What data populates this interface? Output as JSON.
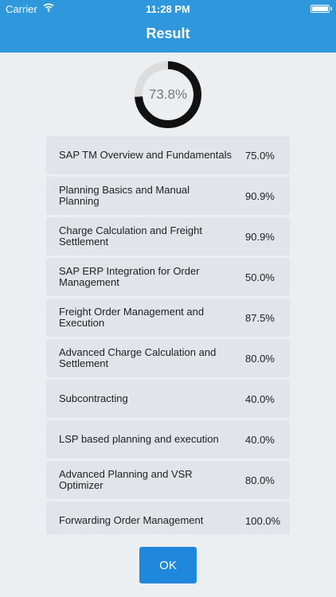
{
  "status_bar": {
    "carrier": "Carrier",
    "time": "11:28 PM",
    "icons": [
      "wifi-icon",
      "battery-icon"
    ]
  },
  "header": {
    "title": "Result"
  },
  "score": {
    "label": "73.8%",
    "value": 0.738
  },
  "results": [
    {
      "name": "SAP TM Overview and Fundamentals",
      "percent": "75.0%"
    },
    {
      "name": "Planning Basics and Manual Planning",
      "percent": "90.9%"
    },
    {
      "name": "Charge Calculation and Freight Settlement",
      "percent": "90.9%"
    },
    {
      "name": "SAP ERP Integration for Order Management",
      "percent": "50.0%"
    },
    {
      "name": "Freight Order Management and Execution",
      "percent": "87.5%"
    },
    {
      "name": "Advanced Charge Calculation and Settlement",
      "percent": "80.0%"
    },
    {
      "name": "Subcontracting",
      "percent": "40.0%"
    },
    {
      "name": "LSP based planning and execution",
      "percent": "40.0%"
    },
    {
      "name": "Advanced Planning and VSR Optimizer",
      "percent": "80.0%"
    },
    {
      "name": "Forwarding Order Management",
      "percent": "100.0%"
    }
  ],
  "actions": {
    "ok_label": "OK"
  },
  "colors": {
    "header": "#2f97dc",
    "button": "#1f88dc",
    "donut_fill": "#111111",
    "donut_track": "#dcdcdc"
  }
}
